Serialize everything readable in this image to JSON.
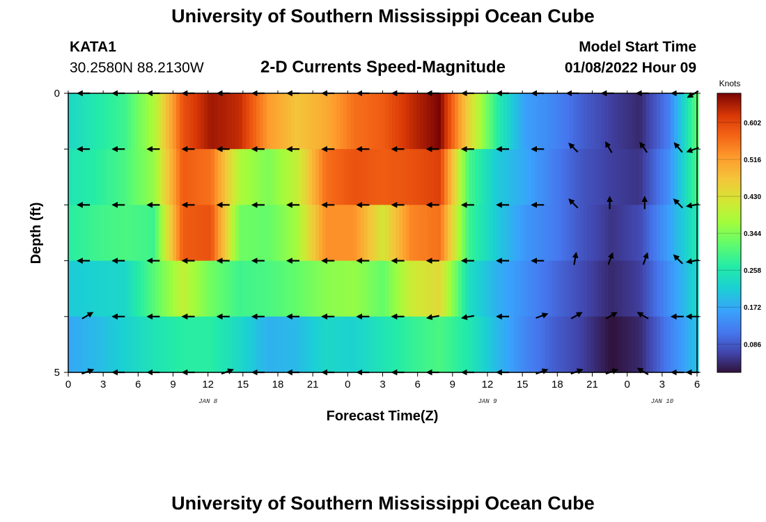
{
  "header": {
    "title": "University of Southern Mississippi Ocean Cube",
    "station": "KATA1",
    "coords": "30.2580N  88.2130W",
    "subtitle": "2-D Currents Speed-Magnitude",
    "start_label": "Model Start Time",
    "start_value": "01/08/2022 Hour 09"
  },
  "footer": {
    "title": "University of Southern Mississippi Ocean Cube"
  },
  "chart_data": {
    "type": "heatmap",
    "title": "2-D Currents Speed-Magnitude",
    "xlabel": "Forecast Time(Z)",
    "ylabel": "Depth (ft)",
    "x_hours": [
      0,
      3,
      6,
      9,
      12,
      15,
      18,
      21,
      24,
      27,
      30,
      33,
      36,
      39,
      42,
      45,
      48,
      51,
      54
    ],
    "x_tick_labels": [
      "0",
      "3",
      "6",
      "9",
      "12",
      "15",
      "18",
      "21",
      "0",
      "3",
      "6",
      "9",
      "12",
      "15",
      "18",
      "21",
      "0",
      "3",
      "6"
    ],
    "date_labels": [
      {
        "label": "JAN 8",
        "hour": 12
      },
      {
        "label": "JAN 9",
        "hour": 36
      },
      {
        "label": "JAN 10",
        "hour": 51
      }
    ],
    "y_tick_labels": [
      "0",
      "",
      "",
      "",
      "",
      "5"
    ],
    "depths_ft": [
      0,
      1,
      2,
      3,
      4,
      5
    ],
    "colorbar": {
      "title": "Knots",
      "tick_values": [
        0.086,
        0.172,
        0.258,
        0.344,
        0.43,
        0.516,
        0.602
      ],
      "tick_labels": [
        "0.086",
        "0.172",
        "0.258",
        "0.344",
        "0.430",
        "0.516",
        "0.602"
      ],
      "range": [
        0.02,
        0.67
      ]
    },
    "speed_knots_by_layer": [
      [
        0.23,
        0.26,
        0.29,
        0.38,
        0.59,
        0.65,
        0.63,
        0.52,
        0.47,
        0.5,
        0.56,
        0.58,
        0.63,
        0.67,
        0.45,
        0.27,
        0.16,
        0.13,
        0.09,
        0.06,
        0.04,
        0.12,
        0.32
      ],
      [
        0.25,
        0.27,
        0.3,
        0.36,
        0.58,
        0.56,
        0.38,
        0.34,
        0.4,
        0.56,
        0.59,
        0.58,
        0.59,
        0.61,
        0.3,
        0.21,
        0.17,
        0.12,
        0.08,
        0.06,
        0.05,
        0.14,
        0.3
      ],
      [
        0.27,
        0.29,
        0.3,
        0.29,
        0.58,
        0.59,
        0.33,
        0.32,
        0.37,
        0.53,
        0.53,
        0.42,
        0.54,
        0.56,
        0.29,
        0.21,
        0.15,
        0.12,
        0.08,
        0.05,
        0.07,
        0.16,
        0.26
      ],
      [
        0.21,
        0.22,
        0.23,
        0.31,
        0.4,
        0.33,
        0.29,
        0.3,
        0.32,
        0.35,
        0.36,
        0.32,
        0.41,
        0.44,
        0.24,
        0.18,
        0.14,
        0.1,
        0.07,
        0.04,
        0.06,
        0.14,
        0.23
      ],
      [
        0.17,
        0.19,
        0.22,
        0.25,
        0.27,
        0.27,
        0.23,
        0.18,
        0.19,
        0.23,
        0.22,
        0.25,
        0.28,
        0.3,
        0.26,
        0.19,
        0.13,
        0.09,
        0.06,
        0.02,
        0.04,
        0.12,
        0.2
      ]
    ],
    "vectors": {
      "layer_depths_ft": [
        0,
        1,
        2,
        3,
        4,
        5
      ],
      "hours": [
        1.5,
        4.5,
        7.5,
        10.5,
        13.5,
        16.5,
        19.5,
        22.5,
        25.5,
        28.5,
        31.5,
        34.5,
        37.5,
        40.5,
        43.5,
        46.5,
        49.5,
        52.5,
        53.8
      ],
      "direction_deg": [
        [
          180,
          180,
          180,
          180,
          180,
          180,
          180,
          180,
          180,
          180,
          180,
          180,
          180,
          180,
          180,
          180,
          180,
          180,
          210
        ],
        [
          180,
          180,
          180,
          180,
          180,
          180,
          180,
          180,
          180,
          180,
          180,
          180,
          180,
          180,
          135,
          120,
          125,
          130,
          200
        ],
        [
          180,
          180,
          180,
          180,
          180,
          180,
          180,
          180,
          180,
          180,
          180,
          180,
          180,
          180,
          135,
          90,
          90,
          135,
          190
        ],
        [
          180,
          180,
          180,
          180,
          180,
          180,
          180,
          180,
          180,
          180,
          180,
          180,
          180,
          180,
          80,
          70,
          70,
          135,
          190
        ],
        [
          30,
          180,
          180,
          180,
          180,
          180,
          180,
          180,
          180,
          180,
          190,
          190,
          180,
          20,
          30,
          30,
          150,
          180,
          180
        ],
        [
          20,
          180,
          180,
          180,
          20,
          180,
          180,
          180,
          180,
          180,
          180,
          180,
          180,
          20,
          20,
          20,
          150,
          180,
          180
        ]
      ]
    }
  }
}
